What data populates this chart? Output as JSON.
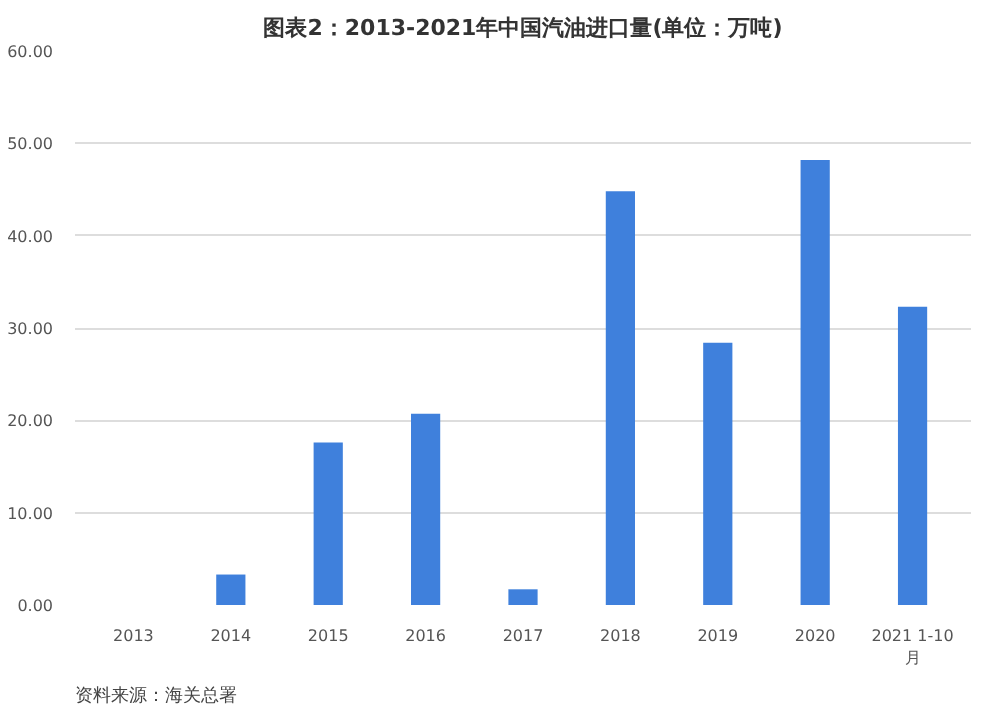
{
  "chart_data": {
    "type": "bar",
    "title": "图表2：2013-2021年中国汽油进口量(单位：万吨)",
    "categories": [
      "2013",
      "2014",
      "2015",
      "2016",
      "2017",
      "2018",
      "2019",
      "2020",
      "2021 1-10月"
    ],
    "values": [
      0,
      3.3,
      17.6,
      20.7,
      1.7,
      44.8,
      28.4,
      48.2,
      32.3
    ],
    "color": "#3f80dc",
    "ylim": [
      0,
      60
    ],
    "yticks": [
      {
        "value": 0,
        "label": "0.00"
      },
      {
        "value": 10,
        "label": "10.00"
      },
      {
        "value": 20,
        "label": "20.00"
      },
      {
        "value": 30,
        "label": "30.00"
      },
      {
        "value": 40,
        "label": "40.00"
      },
      {
        "value": 50,
        "label": "50.00"
      },
      {
        "value": 60,
        "label": "60.00"
      }
    ],
    "grid": "y",
    "annotations": [
      "资料来源：海关总署"
    ]
  }
}
